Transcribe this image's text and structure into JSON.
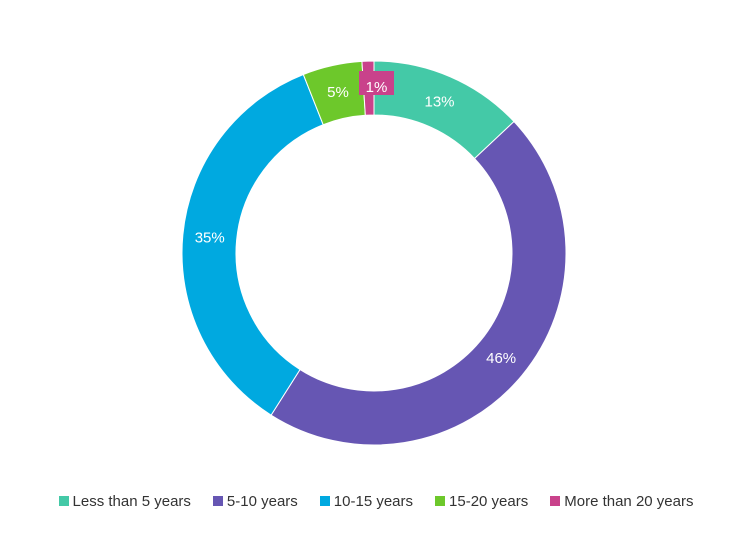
{
  "chart_data": {
    "type": "pie",
    "donut": true,
    "categories": [
      "Less than 5 years",
      "5-10 years",
      "10-15 years",
      "15-20 years",
      "More than 20 years"
    ],
    "values": [
      13,
      46,
      35,
      5,
      1
    ],
    "labels": [
      "13%",
      "46%",
      "35%",
      "5%",
      "1%"
    ],
    "colors": [
      "#44c9a7",
      "#6656b3",
      "#00a9e0",
      "#6dc82b",
      "#c9428b"
    ],
    "unit": "%",
    "legend_position": "bottom",
    "start_angle_deg": 0
  }
}
